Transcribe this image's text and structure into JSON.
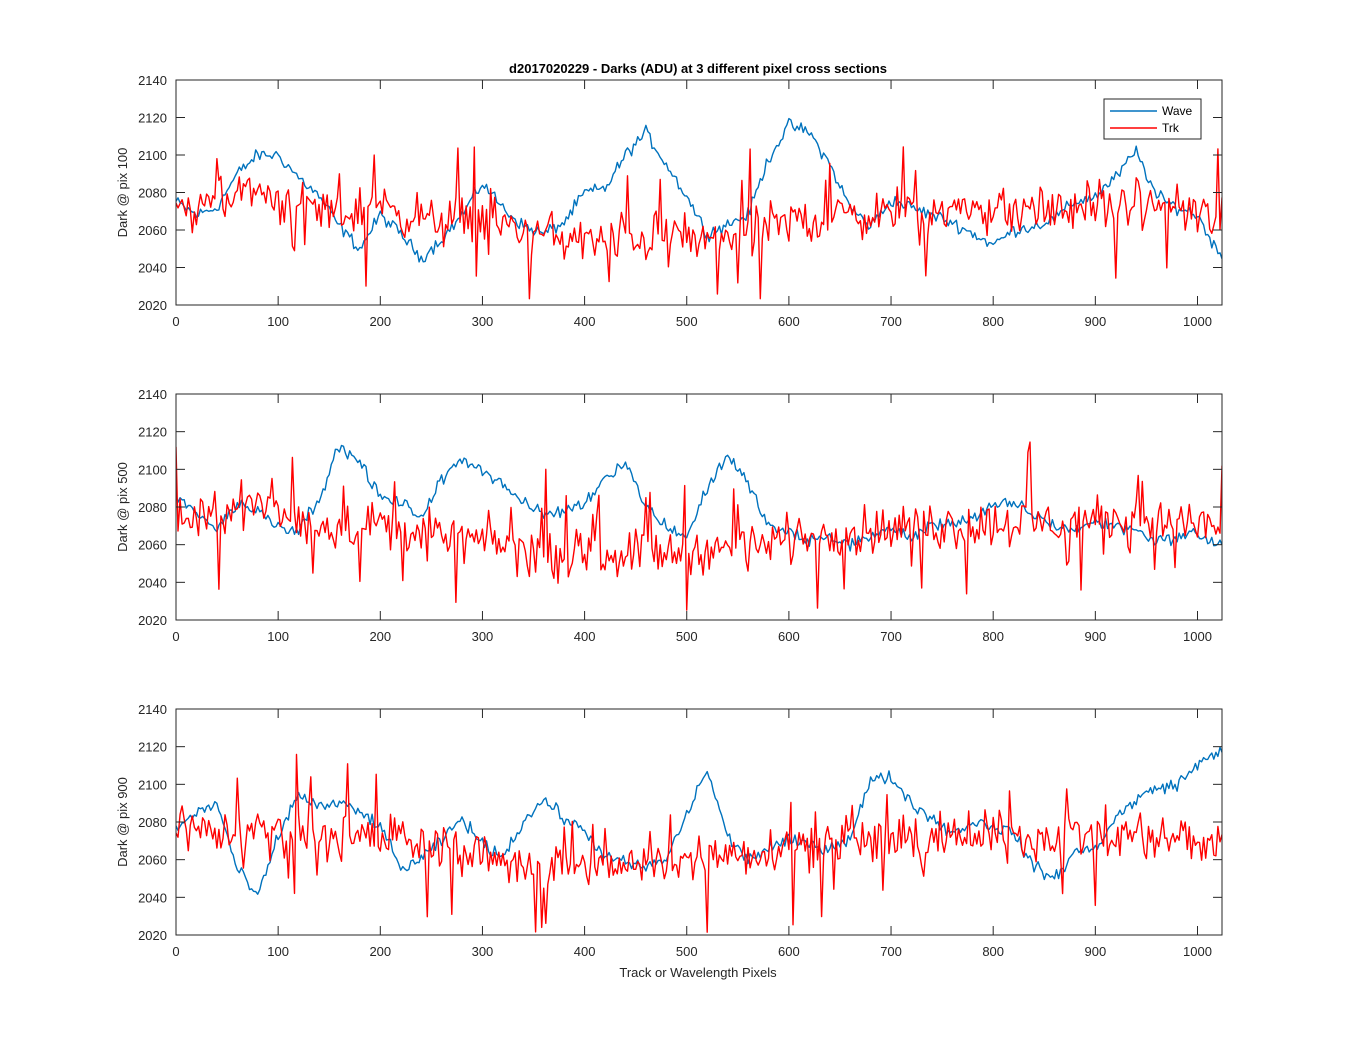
{
  "title": "d2017020229 - Darks (ADU) at 3 different pixel cross sections",
  "xlabel": "Track or Wavelength Pixels",
  "legend": {
    "placement": "top-right",
    "entries": [
      "Wave",
      "Trk"
    ]
  },
  "colors": {
    "Wave": "#0072BD",
    "Trk": "#FF0000",
    "axis": "#262626"
  },
  "chart_data": [
    {
      "type": "line",
      "ylabel": "Dark @ pix 100",
      "xlim": [
        0,
        1024
      ],
      "ylim": [
        2020,
        2140
      ],
      "xticks": [
        0,
        100,
        200,
        300,
        400,
        500,
        600,
        700,
        800,
        900,
        1000
      ],
      "yticks": [
        2020,
        2040,
        2060,
        2080,
        2100,
        2120,
        2140
      ],
      "grid": false,
      "legend": true,
      "series": [
        {
          "name": "Wave",
          "x": [
            0,
            20,
            40,
            60,
            80,
            100,
            120,
            140,
            160,
            180,
            200,
            220,
            240,
            260,
            280,
            300,
            320,
            340,
            360,
            380,
            400,
            420,
            440,
            460,
            480,
            500,
            520,
            540,
            560,
            580,
            600,
            620,
            640,
            660,
            680,
            700,
            720,
            740,
            760,
            780,
            800,
            820,
            840,
            860,
            880,
            900,
            920,
            940,
            960,
            980,
            1000,
            1020
          ],
          "values": [
            2075,
            2068,
            2072,
            2090,
            2100,
            2100,
            2088,
            2078,
            2062,
            2050,
            2068,
            2058,
            2045,
            2055,
            2068,
            2085,
            2072,
            2062,
            2058,
            2064,
            2080,
            2082,
            2100,
            2112,
            2095,
            2078,
            2058,
            2063,
            2068,
            2098,
            2116,
            2112,
            2095,
            2072,
            2062,
            2076,
            2072,
            2068,
            2064,
            2058,
            2052,
            2060,
            2062,
            2066,
            2075,
            2078,
            2088,
            2102,
            2078,
            2072,
            2068,
            2048
          ]
        },
        {
          "name": "Trk",
          "x": [
            0,
            20,
            40,
            60,
            80,
            100,
            120,
            140,
            160,
            180,
            200,
            220,
            240,
            260,
            280,
            300,
            320,
            340,
            360,
            380,
            400,
            420,
            440,
            460,
            480,
            500,
            520,
            540,
            560,
            580,
            600,
            620,
            640,
            660,
            680,
            700,
            720,
            740,
            760,
            780,
            800,
            820,
            840,
            860,
            880,
            900,
            920,
            940,
            960,
            980,
            1000,
            1020
          ],
          "values": [
            2080,
            2070,
            2074,
            2078,
            2082,
            2076,
            2074,
            2072,
            2068,
            2070,
            2074,
            2070,
            2066,
            2064,
            2066,
            2068,
            2064,
            2060,
            2058,
            2056,
            2054,
            2054,
            2056,
            2056,
            2058,
            2056,
            2054,
            2056,
            2060,
            2062,
            2064,
            2066,
            2066,
            2068,
            2068,
            2070,
            2072,
            2070,
            2070,
            2072,
            2070,
            2070,
            2072,
            2070,
            2072,
            2074,
            2072,
            2072,
            2074,
            2072,
            2070,
            2062
          ]
        }
      ]
    },
    {
      "type": "line",
      "ylabel": "Dark @ pix 500",
      "xlim": [
        0,
        1024
      ],
      "ylim": [
        2020,
        2140
      ],
      "xticks": [
        0,
        100,
        200,
        300,
        400,
        500,
        600,
        700,
        800,
        900,
        1000
      ],
      "yticks": [
        2020,
        2040,
        2060,
        2080,
        2100,
        2120,
        2140
      ],
      "grid": false,
      "legend": false,
      "series": [
        {
          "name": "Wave",
          "x": [
            0,
            20,
            40,
            60,
            80,
            100,
            120,
            140,
            160,
            180,
            200,
            220,
            240,
            260,
            280,
            300,
            320,
            340,
            360,
            380,
            400,
            420,
            440,
            460,
            480,
            500,
            520,
            540,
            560,
            580,
            600,
            620,
            640,
            660,
            680,
            700,
            720,
            740,
            760,
            780,
            800,
            820,
            840,
            860,
            880,
            900,
            920,
            940,
            960,
            980,
            1000,
            1020
          ],
          "values": [
            2085,
            2078,
            2068,
            2082,
            2078,
            2070,
            2068,
            2085,
            2112,
            2104,
            2085,
            2082,
            2075,
            2094,
            2106,
            2100,
            2092,
            2082,
            2076,
            2078,
            2082,
            2096,
            2104,
            2080,
            2070,
            2064,
            2090,
            2108,
            2092,
            2070,
            2066,
            2062,
            2064,
            2060,
            2065,
            2068,
            2064,
            2070,
            2072,
            2074,
            2080,
            2082,
            2076,
            2070,
            2068,
            2072,
            2070,
            2068,
            2062,
            2064,
            2066,
            2060
          ]
        },
        {
          "name": "Trk",
          "x": [
            0,
            20,
            40,
            60,
            80,
            100,
            120,
            140,
            160,
            180,
            200,
            220,
            240,
            260,
            280,
            300,
            320,
            340,
            360,
            380,
            400,
            420,
            440,
            460,
            480,
            500,
            520,
            540,
            560,
            580,
            600,
            620,
            640,
            660,
            680,
            700,
            720,
            740,
            760,
            780,
            800,
            820,
            840,
            860,
            880,
            900,
            920,
            940,
            960,
            980,
            1000,
            1020
          ],
          "values": [
            2074,
            2072,
            2076,
            2078,
            2080,
            2076,
            2074,
            2072,
            2070,
            2070,
            2072,
            2068,
            2066,
            2064,
            2064,
            2062,
            2060,
            2058,
            2056,
            2055,
            2054,
            2055,
            2056,
            2056,
            2056,
            2057,
            2058,
            2058,
            2060,
            2062,
            2063,
            2064,
            2066,
            2066,
            2068,
            2068,
            2069,
            2070,
            2070,
            2070,
            2071,
            2072,
            2072,
            2072,
            2072,
            2073,
            2073,
            2072,
            2072,
            2072,
            2071,
            2070
          ]
        }
      ]
    },
    {
      "type": "line",
      "ylabel": "Dark @ pix 900",
      "xlim": [
        0,
        1024
      ],
      "ylim": [
        2020,
        2140
      ],
      "xticks": [
        0,
        100,
        200,
        300,
        400,
        500,
        600,
        700,
        800,
        900,
        1000
      ],
      "yticks": [
        2020,
        2040,
        2060,
        2080,
        2100,
        2120,
        2140
      ],
      "grid": false,
      "legend": false,
      "series": [
        {
          "name": "Wave",
          "x": [
            0,
            20,
            40,
            60,
            80,
            100,
            120,
            140,
            160,
            180,
            200,
            220,
            240,
            260,
            280,
            300,
            320,
            340,
            360,
            380,
            400,
            420,
            440,
            460,
            480,
            500,
            520,
            540,
            560,
            580,
            600,
            620,
            640,
            660,
            680,
            700,
            720,
            740,
            760,
            780,
            800,
            820,
            840,
            860,
            880,
            900,
            920,
            940,
            960,
            980,
            1000,
            1020
          ],
          "values": [
            2076,
            2085,
            2090,
            2055,
            2040,
            2072,
            2095,
            2088,
            2090,
            2085,
            2078,
            2055,
            2060,
            2070,
            2082,
            2068,
            2062,
            2080,
            2092,
            2082,
            2075,
            2062,
            2058,
            2056,
            2060,
            2084,
            2108,
            2072,
            2060,
            2066,
            2070,
            2068,
            2066,
            2072,
            2102,
            2104,
            2090,
            2082,
            2074,
            2080,
            2078,
            2074,
            2056,
            2050,
            2064,
            2066,
            2082,
            2092,
            2098,
            2100,
            2110,
            2118
          ]
        },
        {
          "name": "Trk",
          "x": [
            0,
            20,
            40,
            60,
            80,
            100,
            120,
            140,
            160,
            180,
            200,
            220,
            240,
            260,
            280,
            300,
            320,
            340,
            360,
            380,
            400,
            420,
            440,
            460,
            480,
            500,
            520,
            540,
            560,
            580,
            600,
            620,
            640,
            660,
            680,
            700,
            720,
            740,
            760,
            780,
            800,
            820,
            840,
            860,
            880,
            900,
            920,
            940,
            960,
            980,
            1000,
            1020
          ],
          "values": [
            2080,
            2076,
            2074,
            2074,
            2076,
            2076,
            2074,
            2074,
            2072,
            2072,
            2072,
            2070,
            2068,
            2066,
            2064,
            2062,
            2060,
            2058,
            2056,
            2055,
            2054,
            2055,
            2056,
            2056,
            2058,
            2060,
            2062,
            2064,
            2064,
            2066,
            2067,
            2068,
            2068,
            2069,
            2070,
            2070,
            2070,
            2071,
            2071,
            2072,
            2072,
            2072,
            2072,
            2072,
            2073,
            2073,
            2073,
            2073,
            2072,
            2072,
            2071,
            2068
          ]
        }
      ]
    }
  ]
}
